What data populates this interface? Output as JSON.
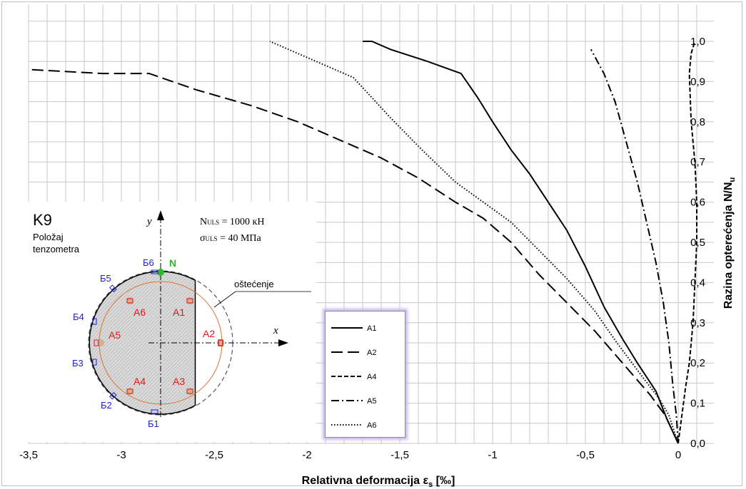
{
  "chart_data": {
    "type": "line",
    "xlabel": "Relativna deformacija ε",
    "xlabel_sub": "s",
    "xlabel_unit": " [‰]",
    "ylabel": "Razina opterećenja  N/N",
    "ylabel_sub": "u",
    "xlim": [
      -3.5,
      0.1
    ],
    "ylim": [
      0.0,
      1.0
    ],
    "x_ticks": [
      "-3,5",
      "-3",
      "-2,5",
      "-2",
      "-1,5",
      "-1",
      "-0,5",
      "0"
    ],
    "x_tick_values": [
      -3.5,
      -3,
      -2.5,
      -2,
      -1.5,
      -1,
      -0.5,
      0
    ],
    "y_ticks": [
      "0,0",
      "0,1",
      "0,2",
      "0,3",
      "0,4",
      "0,5",
      "0,6",
      "0,7",
      "0,8",
      "0,9",
      "1,0"
    ],
    "grid": true,
    "legend_position": "lower-center",
    "series": [
      {
        "name": "A1",
        "style": "solid",
        "x": [
          0,
          -0.06,
          -0.12,
          -0.22,
          -0.3,
          -0.4,
          -0.5,
          -0.6,
          -0.7,
          -0.8,
          -0.9,
          -1.0,
          -1.08,
          -1.17,
          -1.35,
          -1.55,
          -1.65,
          -1.7
        ],
        "y": [
          0.0,
          0.06,
          0.13,
          0.2,
          0.26,
          0.34,
          0.44,
          0.53,
          0.6,
          0.67,
          0.73,
          0.8,
          0.86,
          0.92,
          0.95,
          0.98,
          1.0,
          1.0
        ]
      },
      {
        "name": "A2",
        "style": "long-dash",
        "x": [
          0,
          -0.07,
          -0.15,
          -0.3,
          -0.45,
          -0.6,
          -0.75,
          -0.9,
          -1.05,
          -1.2,
          -1.4,
          -1.6,
          -1.85,
          -2.05,
          -2.3,
          -2.6,
          -2.85,
          -3.1,
          -3.5
        ],
        "y": [
          0.0,
          0.07,
          0.12,
          0.2,
          0.28,
          0.35,
          0.42,
          0.5,
          0.56,
          0.6,
          0.66,
          0.71,
          0.76,
          0.8,
          0.84,
          0.88,
          0.92,
          0.92,
          0.93
        ]
      },
      {
        "name": "A4",
        "style": "short-dash",
        "x": [
          0,
          0.02,
          0.04,
          0.06,
          0.08,
          0.09,
          0.1,
          0.1,
          0.09,
          0.07,
          0.06,
          0.07,
          0.09
        ],
        "y": [
          0.0,
          0.07,
          0.14,
          0.2,
          0.3,
          0.4,
          0.5,
          0.6,
          0.7,
          0.8,
          0.92,
          0.97,
          1.0
        ]
      },
      {
        "name": "A5",
        "style": "dash-dot",
        "x": [
          0,
          -0.01,
          -0.03,
          -0.05,
          -0.08,
          -0.12,
          -0.17,
          -0.22,
          -0.28,
          -0.34,
          -0.4,
          -0.47
        ],
        "y": [
          0.0,
          0.07,
          0.15,
          0.25,
          0.35,
          0.45,
          0.55,
          0.65,
          0.75,
          0.85,
          0.92,
          0.98
        ]
      },
      {
        "name": "A6",
        "style": "dotted",
        "x": [
          0,
          -0.05,
          -0.1,
          -0.2,
          -0.33,
          -0.45,
          -0.6,
          -0.75,
          -0.9,
          -1.05,
          -1.2,
          -1.38,
          -1.55,
          -1.75,
          -1.95,
          -2.2
        ],
        "y": [
          0.0,
          0.07,
          0.11,
          0.17,
          0.25,
          0.33,
          0.41,
          0.48,
          0.55,
          0.6,
          0.65,
          0.73,
          0.81,
          0.91,
          0.95,
          1.0
        ]
      }
    ]
  },
  "inset": {
    "title": "K9",
    "subtitle_line1": "Položaj",
    "subtitle_line2": "tenzometra",
    "n_uls": "N",
    "n_uls_sub": "ULS",
    "n_uls_value": " = 1000 кН",
    "sigma_uls": "σ",
    "sigma_uls_sub": "ULS",
    "sigma_uls_value": " = 40 МПа",
    "axis_y": "y",
    "axis_x": "x",
    "n_label": "N",
    "damage_label": "oštećenje",
    "strain_a": [
      "A1",
      "A2",
      "A3",
      "A4",
      "A5",
      "A6"
    ],
    "strain_b": [
      "Б1",
      "Б2",
      "Б3",
      "Б4",
      "Б5",
      "Б6"
    ],
    "colors": {
      "a_labels": "#e8141b",
      "b_labels": "#1f1fd1",
      "n_point": "#2eb82e",
      "ring": "#e07030"
    }
  },
  "colors": {
    "grid": "#c8c8c8",
    "series": "#000000",
    "legend_glow": "#c9b8ec"
  }
}
